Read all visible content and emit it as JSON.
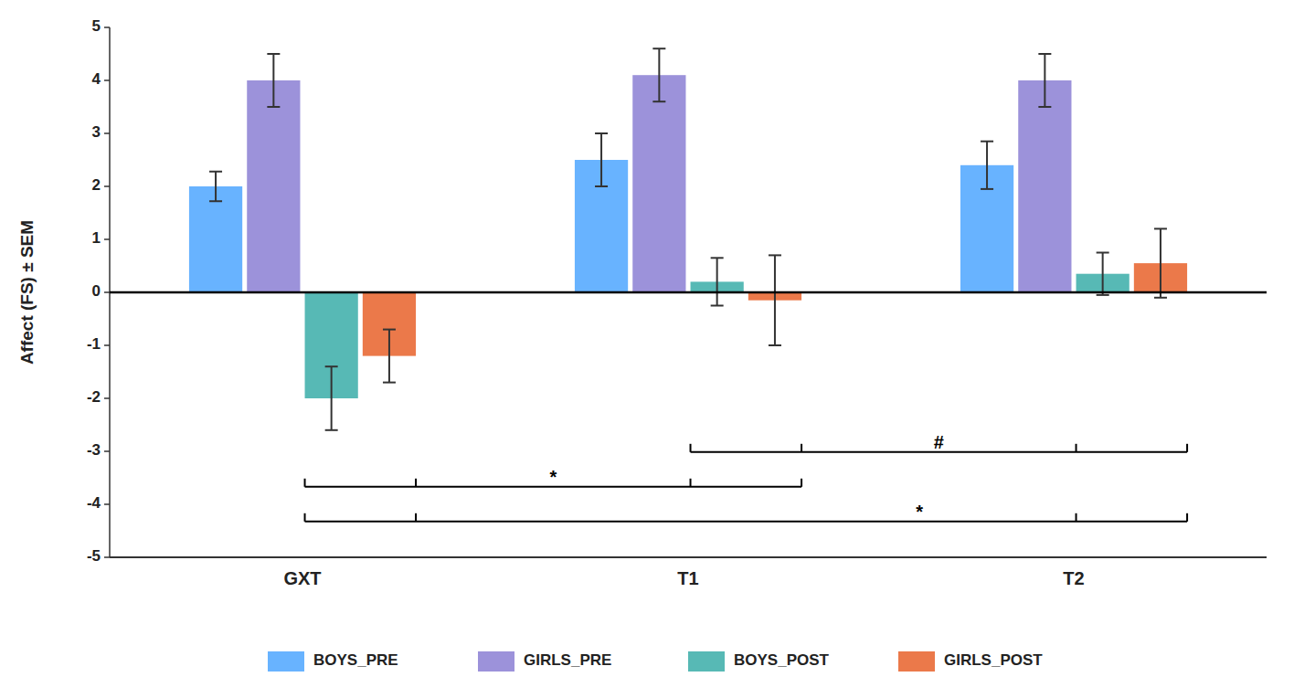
{
  "chart_data": {
    "type": "bar",
    "categories": [
      "GXT",
      "T1",
      "T2"
    ],
    "series": [
      {
        "name": "BOYS_PRE",
        "color": "#4DA6FF",
        "values": [
          2.0,
          2.5,
          2.4
        ],
        "errors": [
          0.28,
          0.5,
          0.45
        ]
      },
      {
        "name": "GIRLS_PRE",
        "color": "#8B7FD4",
        "values": [
          4.0,
          4.1,
          4.0
        ],
        "errors": [
          0.5,
          0.5,
          0.5
        ]
      },
      {
        "name": "BOYS_POST",
        "color": "#3AADA8",
        "values": [
          -2.0,
          0.2,
          0.35
        ],
        "errors": [
          0.6,
          0.45,
          0.4
        ]
      },
      {
        "name": "GIRLS_POST",
        "color": "#E8622A",
        "values": [
          -1.2,
          -0.15,
          0.55
        ],
        "errors": [
          0.5,
          0.85,
          0.65
        ]
      }
    ],
    "ylabel": "Affect (FS) ± SEM",
    "ylim": [
      -5,
      5
    ],
    "yticks": [
      -5,
      -4,
      -3,
      -2,
      -1,
      0,
      1,
      2,
      3,
      4,
      5
    ],
    "annotations": [
      {
        "text": "*",
        "groups": [
          "GXT",
          "T1"
        ]
      },
      {
        "text": "#",
        "groups": [
          "T1",
          "T2"
        ]
      },
      {
        "text": "*",
        "groups": [
          "GXT",
          "T2"
        ]
      }
    ],
    "grid": false,
    "legend": "bottom"
  }
}
